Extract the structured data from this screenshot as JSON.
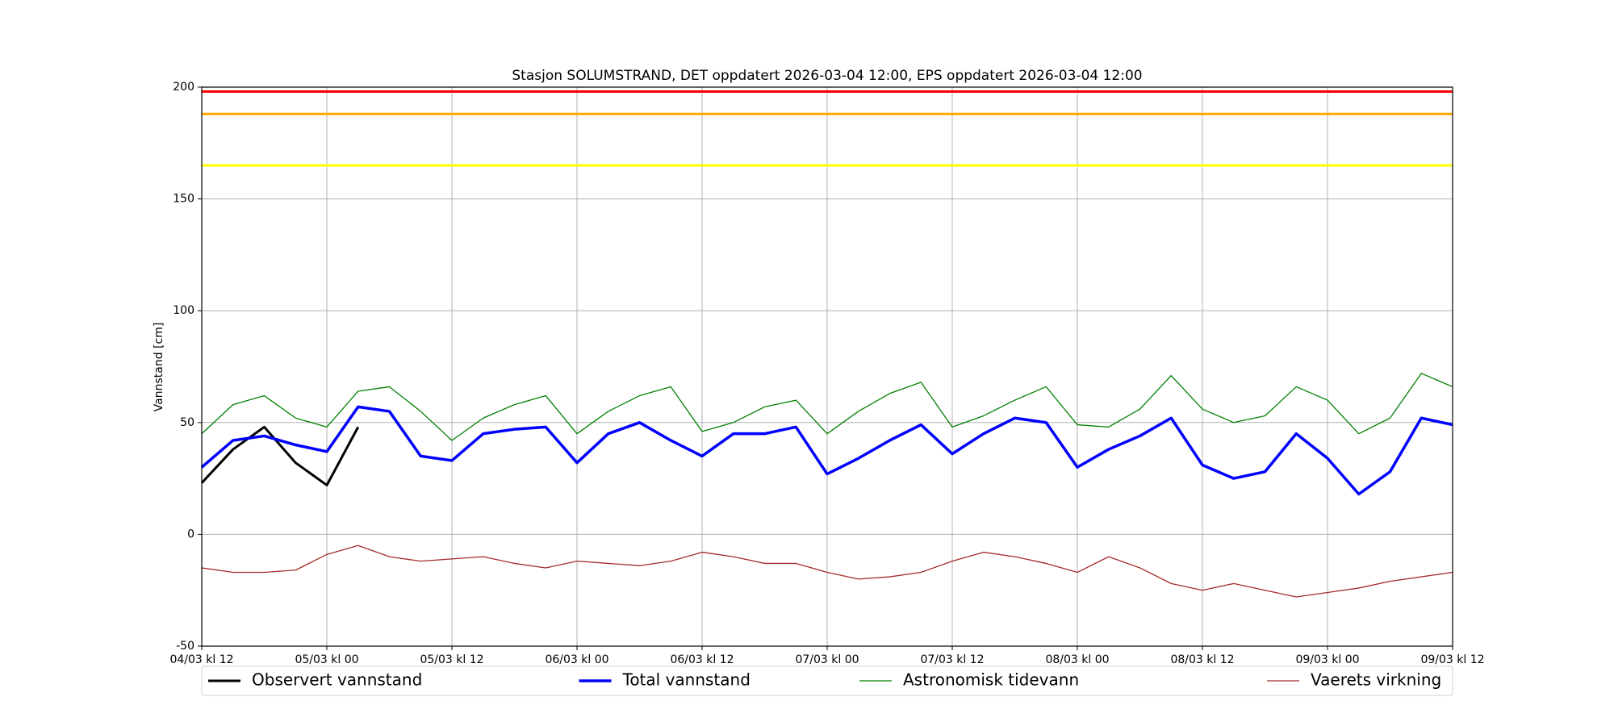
{
  "chart_data": {
    "type": "line",
    "title": "Stasjon SOLUMSTRAND, DET oppdatert 2026-03-04 12:00, EPS oppdatert 2026-03-04 12:00",
    "y_label": "Vannstand [cm]",
    "x": [
      "2026-03-04T12:00",
      "2026-03-04T15:00",
      "2026-03-04T18:00",
      "2026-03-04T21:00",
      "2026-03-05T00:00",
      "2026-03-05T03:00",
      "2026-03-05T06:00",
      "2026-03-05T09:00",
      "2026-03-05T12:00",
      "2026-03-05T15:00",
      "2026-03-05T18:00",
      "2026-03-05T21:00",
      "2026-03-06T00:00",
      "2026-03-06T03:00",
      "2026-03-06T06:00",
      "2026-03-06T09:00",
      "2026-03-06T12:00",
      "2026-03-06T15:00",
      "2026-03-06T18:00",
      "2026-03-06T21:00",
      "2026-03-07T00:00",
      "2026-03-07T03:00",
      "2026-03-07T06:00",
      "2026-03-07T09:00",
      "2026-03-07T12:00",
      "2026-03-07T15:00",
      "2026-03-07T18:00",
      "2026-03-07T21:00",
      "2026-03-08T00:00",
      "2026-03-08T03:00",
      "2026-03-08T06:00",
      "2026-03-08T09:00",
      "2026-03-08T12:00",
      "2026-03-08T15:00",
      "2026-03-08T18:00",
      "2026-03-08T21:00",
      "2026-03-09T00:00",
      "2026-03-09T03:00",
      "2026-03-09T06:00",
      "2026-03-09T09:00",
      "2026-03-09T12:00"
    ],
    "series": [
      {
        "name": "Observert vannstand",
        "color": "#000000",
        "linewidth": 3,
        "values": [
          23,
          38,
          48,
          32,
          22,
          48,
          null,
          null,
          null,
          null,
          null,
          null,
          null,
          null,
          null,
          null,
          null,
          null,
          null,
          null,
          null,
          null,
          null,
          null,
          null,
          null,
          null,
          null,
          null,
          null,
          null,
          null,
          null,
          null,
          null,
          null,
          null,
          null,
          null,
          null,
          null
        ]
      },
      {
        "name": "Total vannstand",
        "color": "#0000ff",
        "linewidth": 3.5,
        "values": [
          30,
          42,
          44,
          40,
          37,
          57,
          55,
          35,
          33,
          45,
          47,
          48,
          32,
          45,
          50,
          42,
          35,
          45,
          45,
          48,
          27,
          34,
          42,
          49,
          36,
          45,
          52,
          50,
          30,
          38,
          44,
          52,
          31,
          25,
          28,
          45,
          34,
          18,
          28,
          52,
          49
        ]
      },
      {
        "name": "Astronomisk tidevann",
        "color": "#008000",
        "linewidth": 1.3,
        "values": [
          45,
          58,
          62,
          52,
          48,
          64,
          66,
          55,
          42,
          52,
          58,
          62,
          45,
          55,
          62,
          66,
          46,
          50,
          57,
          60,
          45,
          55,
          63,
          68,
          48,
          53,
          60,
          66,
          49,
          48,
          56,
          71,
          56,
          50,
          53,
          66,
          60,
          45,
          52,
          72,
          66
        ]
      },
      {
        "name": "Vaerets virkning",
        "color": "#a52a2a",
        "linewidth": 1.3,
        "values": [
          -15,
          -17,
          -17,
          -16,
          -9,
          -5,
          -10,
          -12,
          -11,
          -10,
          -13,
          -15,
          -12,
          -13,
          -14,
          -12,
          -8,
          -10,
          -13,
          -13,
          -17,
          -20,
          -19,
          -17,
          -12,
          -8,
          -10,
          -13,
          -17,
          -10,
          -15,
          -22,
          -25,
          -22,
          -25,
          -28,
          -26,
          -24,
          -21,
          -19,
          -17
        ]
      }
    ],
    "hlines": [
      {
        "value": 198,
        "color": "#ff0000"
      },
      {
        "value": 188,
        "color": "#ffa500"
      },
      {
        "value": 165,
        "color": "#ffff00"
      }
    ],
    "xlim": [
      "2026-03-04T12:00",
      "2026-03-09T12:00"
    ],
    "xticks": [
      {
        "value": "2026-03-04T12:00",
        "label": "04/03 kl 12"
      },
      {
        "value": "2026-03-05T00:00",
        "label": "05/03 kl 00"
      },
      {
        "value": "2026-03-05T12:00",
        "label": "05/03 kl 12"
      },
      {
        "value": "2026-03-06T00:00",
        "label": "06/03 kl 00"
      },
      {
        "value": "2026-03-06T12:00",
        "label": "06/03 kl 12"
      },
      {
        "value": "2026-03-07T00:00",
        "label": "07/03 kl 00"
      },
      {
        "value": "2026-03-07T12:00",
        "label": "07/03 kl 12"
      },
      {
        "value": "2026-03-08T00:00",
        "label": "08/03 kl 00"
      },
      {
        "value": "2026-03-08T12:00",
        "label": "08/03 kl 12"
      },
      {
        "value": "2026-03-09T00:00",
        "label": "09/03 kl 00"
      },
      {
        "value": "2026-03-09T12:00",
        "label": "09/03 kl 12"
      }
    ],
    "ylim": [
      -50,
      200
    ],
    "yticks": [
      -50,
      0,
      50,
      100,
      150,
      200
    ],
    "grid": true,
    "legend": "bottom"
  }
}
